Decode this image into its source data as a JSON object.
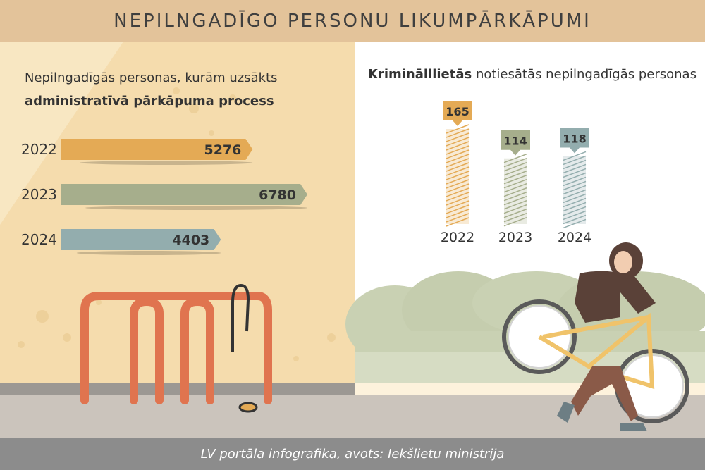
{
  "header": {
    "title": "NEPILNGADĪGO PERSONU LIKUMPĀRKĀPUMI"
  },
  "left_chart": {
    "subtitle_normal": "Nepilngadīgās personas, kurām uzsākts",
    "subtitle_bold": "administratīvā pārkāpuma process"
  },
  "right_chart": {
    "subtitle_bold": "Kriminālllietās",
    "subtitle_normal": " notiesātās nepilngadīgās personas"
  },
  "footer": {
    "text": "LV portāla infografika, avots: Iekšlietu ministrija"
  },
  "colors": {
    "orange": "#e4aa55",
    "green": "#a6ae8c",
    "blue": "#93adae",
    "header_bg": "#e3c39a",
    "footer_bg": "#8c8c8c"
  },
  "chart_data": [
    {
      "type": "bar",
      "orientation": "horizontal",
      "categories": [
        "2022",
        "2023",
        "2024"
      ],
      "values": [
        5276,
        6780,
        4403
      ],
      "title": "Nepilngadīgās personas, kurām uzsākts administratīvā pārkāpuma process",
      "series_colors": [
        "#e4aa55",
        "#a6ae8c",
        "#93adae"
      ],
      "grid": false
    },
    {
      "type": "bar",
      "orientation": "vertical",
      "categories": [
        "2022",
        "2023",
        "2024"
      ],
      "values": [
        165,
        114,
        118
      ],
      "title": "Kriminālllietās notiesātās nepilngadīgās personas",
      "series_colors": [
        "#e4aa55",
        "#a6ae8c",
        "#93adae"
      ],
      "grid": false
    }
  ]
}
